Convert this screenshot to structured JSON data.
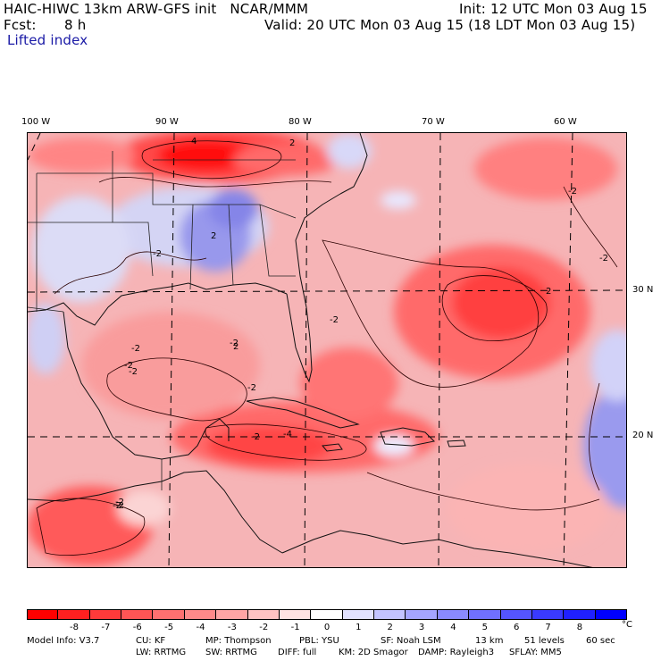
{
  "header": {
    "model_line": "HAIC-HIWC 13km ARW-GFS init   NCAR/MMM",
    "init_line": "Init: 12 UTC Mon 03 Aug 15",
    "fcst_label": "Fcst:",
    "fcst_value": "8 h",
    "valid_line": "Valid: 20 UTC Mon 03 Aug 15 (18 LDT Mon 03 Aug 15)",
    "field_name": "Lifted index"
  },
  "map": {
    "lon_labels": [
      "100 W",
      "90 W",
      "80 W",
      "70 W",
      "60 W"
    ],
    "lat_labels": [
      "30 N",
      "20 N"
    ],
    "contour_labels": [
      "4",
      "2",
      "-2",
      "-2",
      "-4",
      "-2",
      "-2",
      "-2",
      "-2",
      "-2",
      "-2",
      "-2",
      "-2",
      "2",
      "-2",
      "-2",
      "2",
      "2",
      "-2"
    ]
  },
  "colorbar": {
    "ticks": [
      "-8",
      "-7",
      "-6",
      "-5",
      "-4",
      "-3",
      "-2",
      "-1",
      "0",
      "1",
      "2",
      "3",
      "4",
      "5",
      "6",
      "7",
      "8"
    ],
    "unit": "°C",
    "colors": [
      "#ff0000",
      "#ff2020",
      "#ff3a3a",
      "#ff5555",
      "#ff7070",
      "#ff8a8a",
      "#ffa5a5",
      "#ffc3c3",
      "#ffe2e2",
      "#ffffff",
      "#e2e2ff",
      "#c3c3ff",
      "#a5a5ff",
      "#8a8aff",
      "#7070ff",
      "#5555ff",
      "#3a3aff",
      "#2020ff",
      "#0000ff"
    ]
  },
  "model_info": {
    "line1": [
      "Model Info: V3.7",
      "CU: KF",
      "MP: Thompson",
      "PBL: YSU",
      "SF: Noah LSM",
      "13 km",
      "51 levels",
      "60 sec"
    ],
    "line2": [
      "LW: RRTMG",
      "SW: RRTMG",
      "DIFF: full",
      "KM: 2D Smagor",
      "DAMP: Rayleigh3",
      "SFLAY: MM5"
    ]
  }
}
